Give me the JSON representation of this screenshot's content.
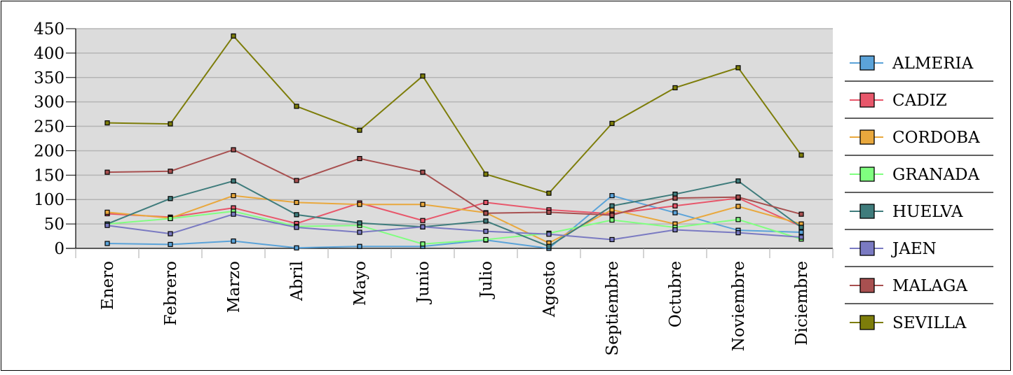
{
  "chart_data": {
    "type": "line",
    "title": "",
    "xlabel": "",
    "ylabel": "",
    "ylim": [
      0,
      450
    ],
    "yticks": [
      0,
      50,
      100,
      150,
      200,
      250,
      300,
      350,
      400,
      450
    ],
    "grid": true,
    "legend_position": "right",
    "plot_background": "#dcdcdc",
    "categories": [
      "Enero",
      "Febrero",
      "Marzo",
      "Abril",
      "Mayo",
      "Junio",
      "Julio",
      "Agosto",
      "Septiembre",
      "Octubre",
      "Noviembre",
      "Diciembre"
    ],
    "series": [
      {
        "name": "ALMERIA",
        "color": "#5ba3d9",
        "values": [
          10,
          8,
          15,
          1,
          4,
          4,
          17,
          0,
          108,
          73,
          37,
          33
        ]
      },
      {
        "name": "CADIZ",
        "color": "#e8576b",
        "values": [
          71,
          64,
          83,
          51,
          93,
          57,
          94,
          79,
          71,
          87,
          103,
          45
        ]
      },
      {
        "name": "CORDOBA",
        "color": "#e9a83d",
        "values": [
          74,
          62,
          108,
          94,
          90,
          90,
          73,
          11,
          79,
          50,
          86,
          50
        ]
      },
      {
        "name": "GRANADA",
        "color": "#80ff80",
        "values": [
          50,
          61,
          76,
          45,
          47,
          9,
          18,
          31,
          58,
          43,
          59,
          19
        ]
      },
      {
        "name": "HUELVA",
        "color": "#3f7c7c",
        "values": [
          50,
          102,
          138,
          69,
          52,
          44,
          56,
          4,
          87,
          111,
          138,
          43
        ]
      },
      {
        "name": "JAEN",
        "color": "#7a7ac2",
        "values": [
          47,
          30,
          70,
          43,
          33,
          44,
          35,
          29,
          18,
          38,
          32,
          23
        ]
      },
      {
        "name": "MALAGA",
        "color": "#a85050",
        "values": [
          156,
          158,
          202,
          139,
          184,
          156,
          72,
          74,
          68,
          103,
          105,
          70
        ]
      },
      {
        "name": "SEVILLA",
        "color": "#7d7d0a",
        "values": [
          257,
          255,
          435,
          291,
          242,
          353,
          152,
          113,
          256,
          329,
          370,
          191
        ]
      }
    ]
  }
}
